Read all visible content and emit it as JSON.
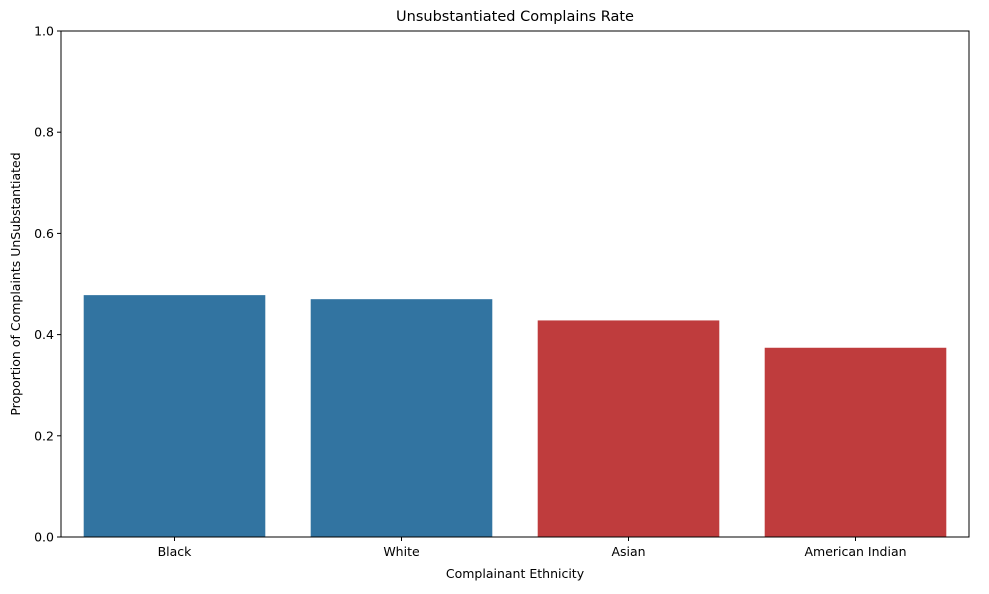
{
  "chart_data": {
    "type": "bar",
    "title": "Unsubstantiated Complains Rate",
    "xlabel": "Complainant Ethnicity",
    "ylabel": "Proportion of Complaints UnSubstantiated",
    "categories": [
      "Black",
      "White",
      "Asian",
      "American Indian"
    ],
    "values": [
      0.478,
      0.47,
      0.428,
      0.374
    ],
    "bar_colors": [
      "#3274a1",
      "#3274a1",
      "#bf3c3d",
      "#bf3c3d"
    ],
    "ylim": [
      0,
      1.0
    ],
    "yticks": [
      "0.0",
      "0.2",
      "0.4",
      "0.6",
      "0.8",
      "1.0"
    ],
    "grid": false,
    "legend": "none"
  }
}
